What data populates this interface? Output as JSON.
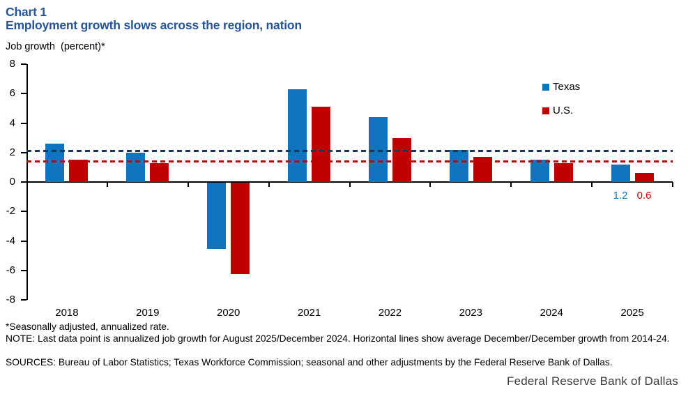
{
  "header": {
    "chart_label": "Chart 1",
    "title": "Employment growth slows across the region, nation"
  },
  "chart_data": {
    "type": "bar",
    "title": "Employment growth slows across the region, nation",
    "ylabel": "Job growth  (percent)*",
    "xlabel": "",
    "categories": [
      "2018",
      "2019",
      "2020",
      "2021",
      "2022",
      "2023",
      "2024",
      "2025"
    ],
    "series": [
      {
        "name": "Texas",
        "color": "#0e74be",
        "values": [
          2.6,
          2.0,
          -4.5,
          6.3,
          4.4,
          2.2,
          1.5,
          1.2
        ]
      },
      {
        "name": "U.S.",
        "color": "#c00000",
        "values": [
          1.5,
          1.3,
          -6.2,
          5.1,
          3.0,
          1.7,
          1.3,
          0.6
        ]
      }
    ],
    "reference_lines": [
      {
        "series": "Texas",
        "description": "Texas average December/December growth 2014-24",
        "value": 2.1,
        "color": "#17375e",
        "style": "dashed"
      },
      {
        "series": "U.S.",
        "description": "U.S. average December/December growth 2014-24",
        "value": 1.4,
        "color": "#c00000",
        "style": "dashed"
      }
    ],
    "last_point_labels": [
      {
        "series": "Texas",
        "category": "2025",
        "text": "1.2"
      },
      {
        "series": "U.S.",
        "category": "2025",
        "text": "0.6"
      }
    ],
    "ylim": [
      -8,
      8
    ],
    "y_ticks": [
      8,
      6,
      4,
      2,
      0,
      -2,
      -4,
      -6,
      -8
    ],
    "grid": false,
    "legend_position": "top-right"
  },
  "footnotes": {
    "asterisk": "*Seasonally adjusted, annualized rate.",
    "note": "NOTE: Last data point is annualized job growth for August 2025/December 2024. Horizontal lines show average December/December growth from 2014-24.",
    "sources": "SOURCES: Bureau of Labor Statistics; Texas Workforce Commission; seasonal and other adjustments by the Federal Reserve Bank of Dallas."
  },
  "footer": {
    "brand": "Federal Reserve Bank of Dallas"
  }
}
